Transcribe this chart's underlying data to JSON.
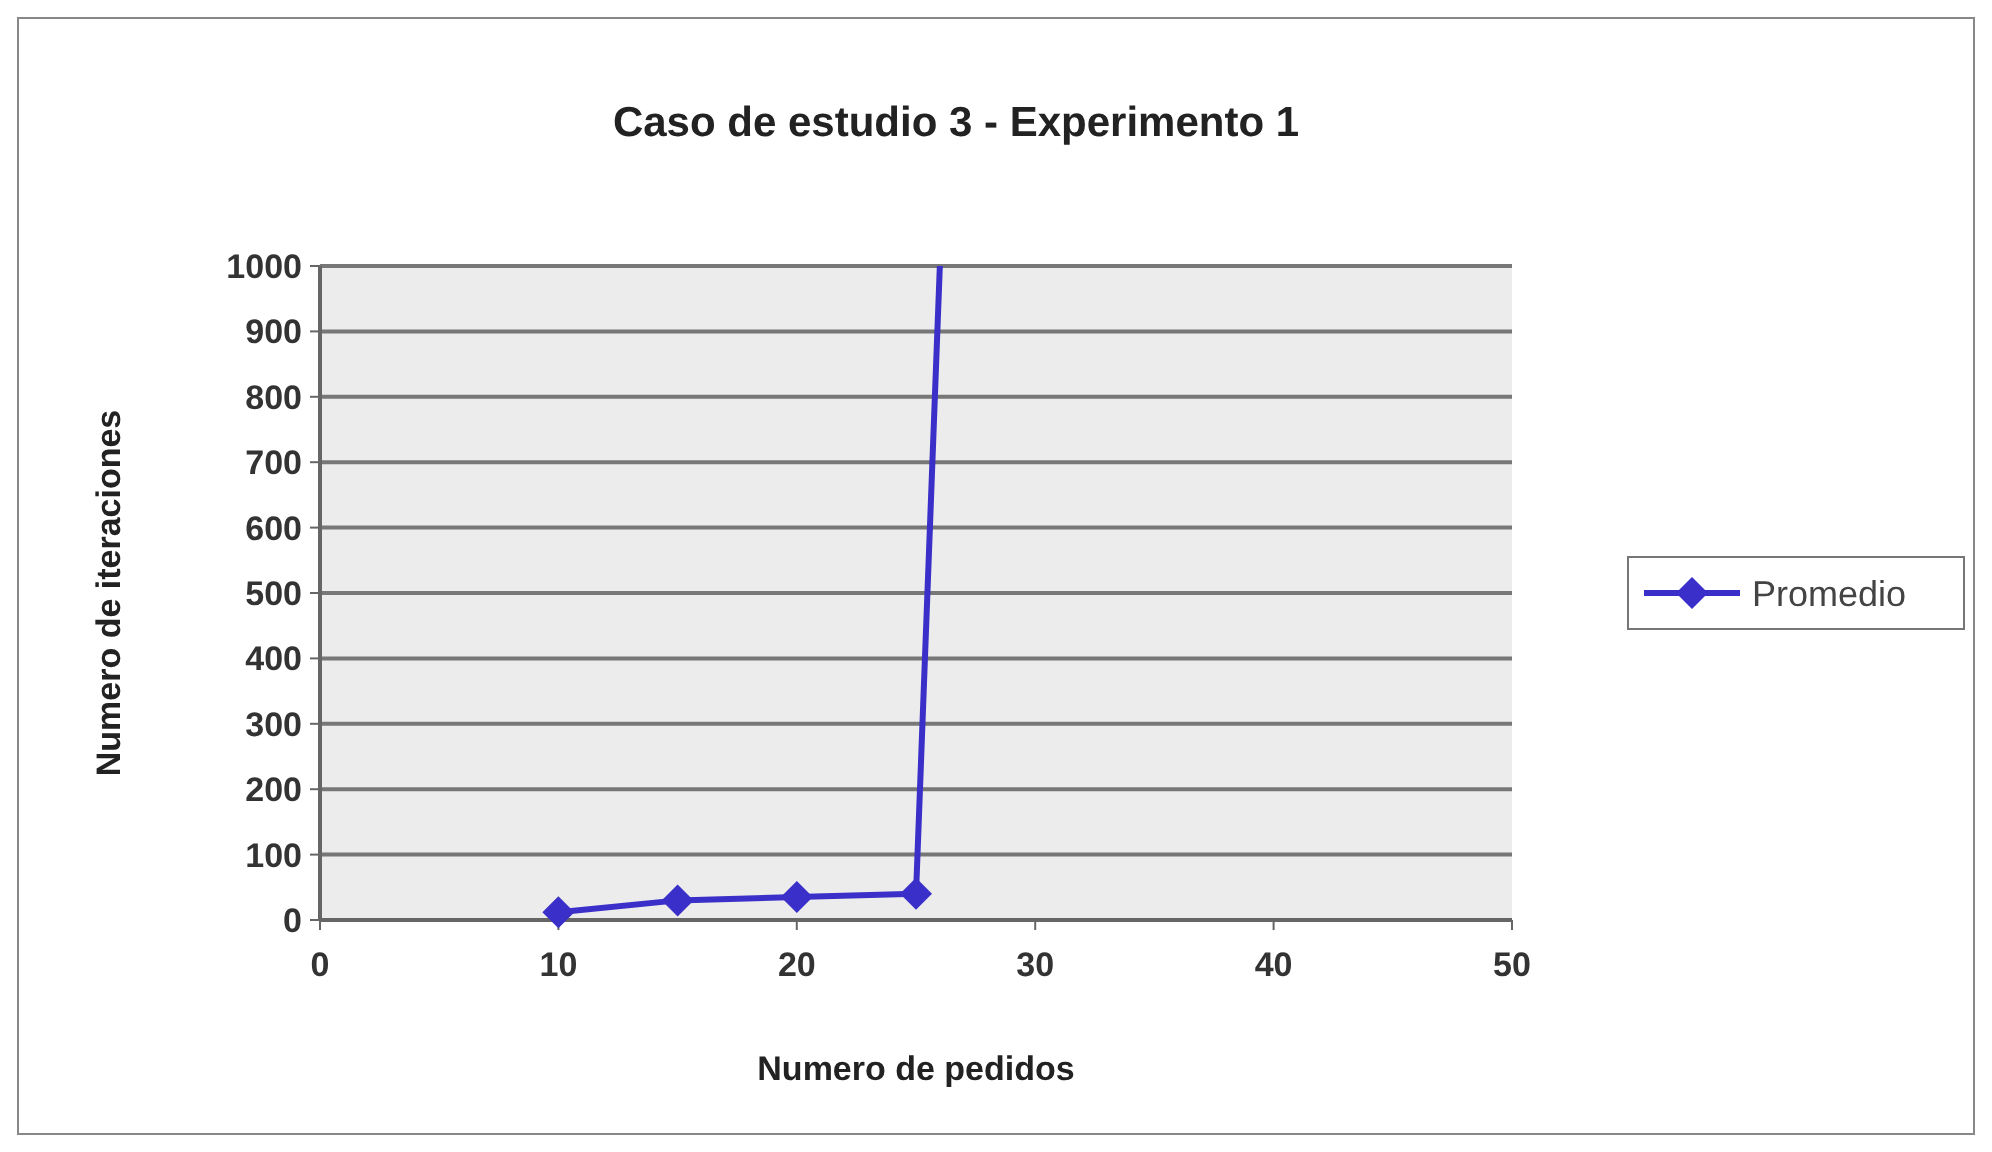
{
  "chart_data": {
    "type": "line",
    "title": "Caso de estudio 3 - Experimento 1",
    "xlabel": "Numero de pedidos",
    "ylabel": "Numero de iteraciones",
    "series": [
      {
        "name": "Promedio",
        "color": "#3a2fc8",
        "x": [
          10,
          15,
          20,
          25,
          26
        ],
        "values": [
          12,
          30,
          35,
          40,
          1000
        ]
      }
    ],
    "xlim": [
      0,
      50
    ],
    "xticks": [
      0,
      10,
      20,
      30,
      40,
      50
    ],
    "ylim": [
      0,
      1000
    ],
    "yticks": [
      0,
      100,
      200,
      300,
      400,
      500,
      600,
      700,
      800,
      900,
      1000
    ],
    "grid": "y",
    "legend": "right",
    "marker": "diamond",
    "line_style": "solid"
  }
}
